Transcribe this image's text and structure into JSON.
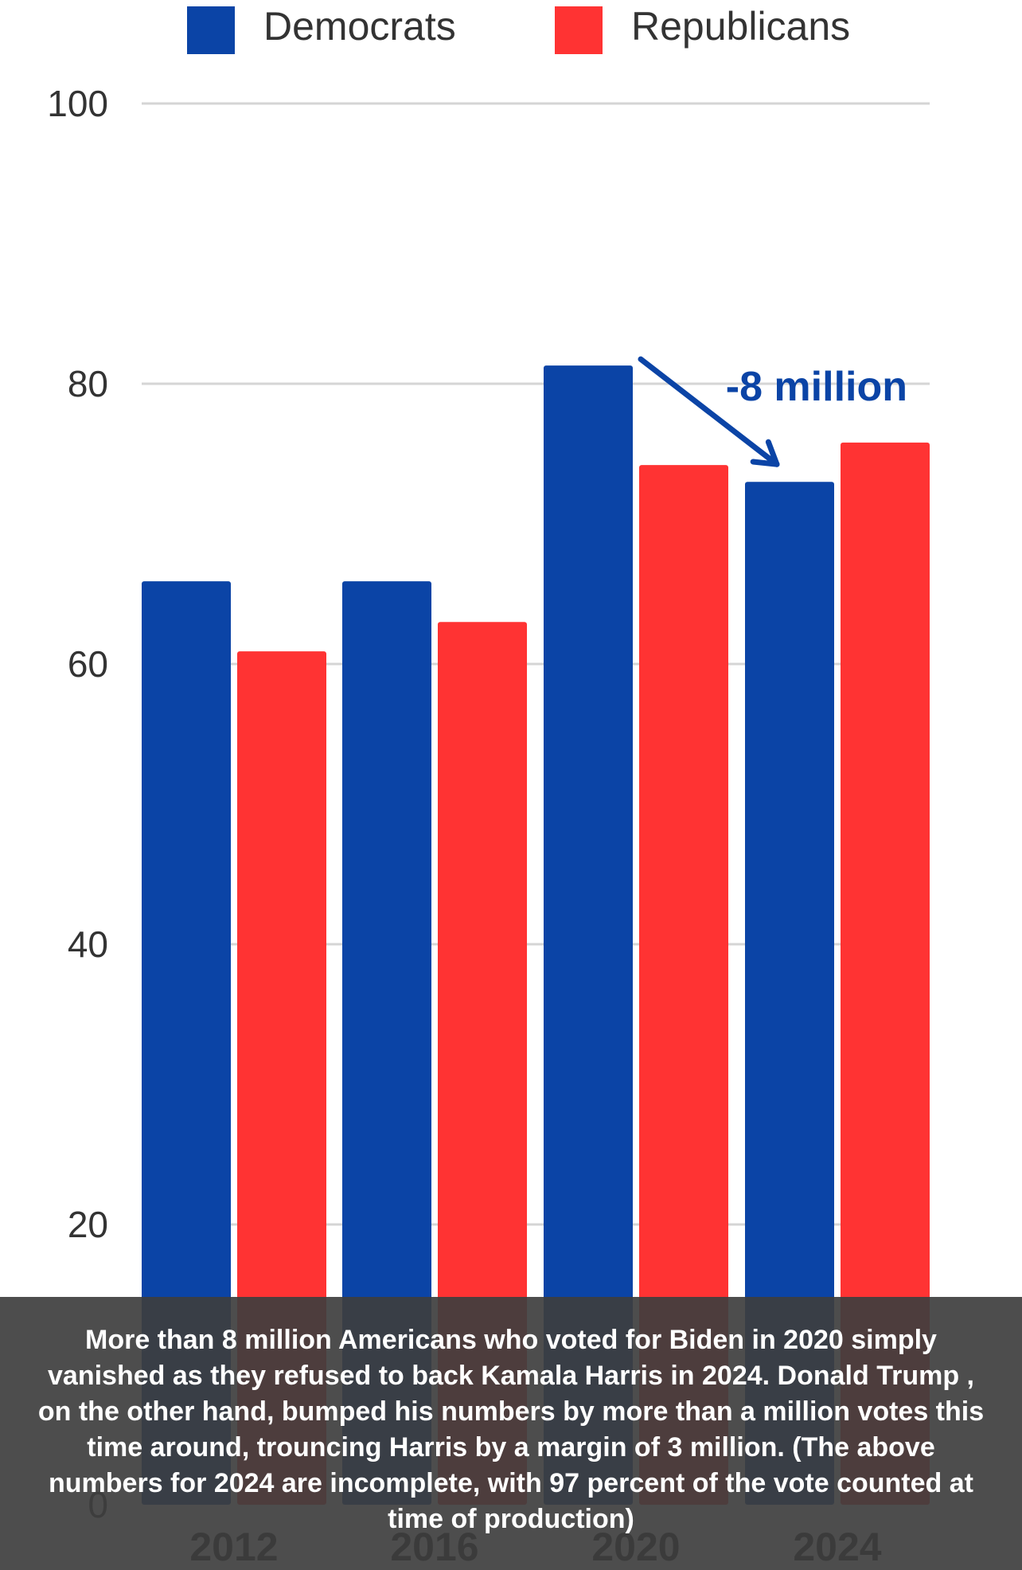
{
  "chart_data": {
    "type": "bar",
    "categories": [
      "2012",
      "2016",
      "2020",
      "2024"
    ],
    "series": [
      {
        "name": "Democrats",
        "color": "#0b44a6",
        "values": [
          65.9,
          65.9,
          81.3,
          73.0
        ]
      },
      {
        "name": "Republicans",
        "color": "#ff3333",
        "values": [
          60.9,
          63.0,
          74.2,
          75.8
        ]
      }
    ],
    "ylim": [
      0,
      100
    ],
    "yticks": [
      0,
      20,
      40,
      60,
      80,
      100
    ],
    "grid": true,
    "legend": "top-center",
    "annotations": [
      {
        "text": "-8 million",
        "color": "#0b44a6",
        "from_series": 0,
        "from_category": 2,
        "to_series": 0,
        "to_category": 3
      }
    ]
  },
  "caption": {
    "text": "More than 8 million Americans who voted for Biden in 2020 simply vanished as they refused to back Kamala Harris in 2024. Donald Trump , on the other hand, bumped his numbers by more than a million votes this time around, trouncing Harris by a margin of 3 million. (The above numbers for 2024 are incomplete, with 97 percent of the vote counted at time of production)"
  }
}
